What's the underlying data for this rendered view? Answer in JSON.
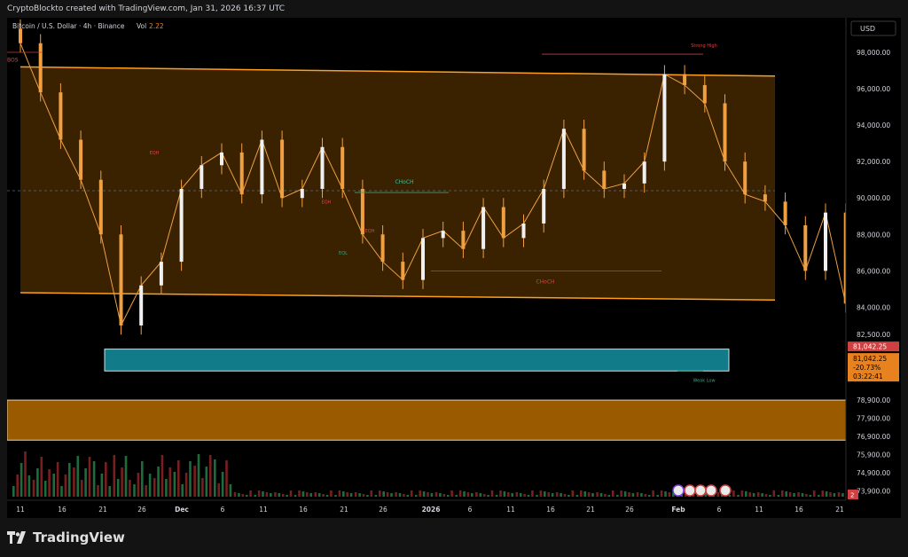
{
  "header": {
    "created_by": "CryptoBlockto created with TradingView.com, Jan 31, 2026 16:37 UTC"
  },
  "legend": {
    "symbol": "Bitcoin / U.S. Dollar · 4h · Binance",
    "vol_label": "Vol",
    "vol_value": "2.22"
  },
  "price_scale": {
    "currency": "USD",
    "ticks": [
      "98,000.00",
      "96,000.00",
      "94,000.00",
      "92,000.00",
      "90,000.00",
      "88,000.00",
      "86,000.00",
      "84,000.00",
      "82,500.00",
      "78,900.00",
      "77,900.00",
      "76,900.00",
      "75,900.00",
      "74,900.00",
      "73,900.00"
    ],
    "last_price_top": "81,042.25",
    "last_price": "81,042.25",
    "change_pct": "-20.73%",
    "countdown": "03:22:41",
    "corner_badge": "2"
  },
  "time_axis": {
    "labels": [
      "11",
      "16",
      "21",
      "26",
      "Dec",
      "6",
      "11",
      "16",
      "21",
      "26",
      "2026",
      "6",
      "11",
      "16",
      "21",
      "26",
      "Feb",
      "6",
      "11",
      "16",
      "21"
    ]
  },
  "annotations": {
    "bos": "BOS",
    "strong_high": "Strong High",
    "weak_low": "Weak Low",
    "choch_upper": "CHoCH",
    "choch_lower": "CHoCH",
    "eqh_1": "EQH",
    "eqh_2": "EQH",
    "eqh_3": "EQH",
    "eql": "EQL"
  },
  "footer": {
    "brand": "TradingView"
  },
  "colors": {
    "candle": "#f0f0f0",
    "wick": "#f0a040",
    "channel_fill": "#3a2200",
    "channel_border": "#ff9f1c",
    "demand_zone": "#127b8a",
    "lower_zone": "#9a5a00",
    "volume_green": "#1e6b3e",
    "volume_red": "#7a1e1e",
    "last_price_badge": "#e8821e"
  },
  "chart_data": {
    "type": "candlestick",
    "timeframe": "4h",
    "exchange": "Binance",
    "symbol": "BTCUSD",
    "x": [
      "11",
      "13",
      "15",
      "17",
      "19",
      "21",
      "23",
      "25",
      "27",
      "29",
      "Dec",
      "2",
      "4",
      "6",
      "8",
      "10",
      "12",
      "14",
      "16",
      "18",
      "20",
      "22",
      "24",
      "26",
      "28",
      "30",
      "2026",
      "2",
      "4",
      "6",
      "8",
      "10",
      "12",
      "14",
      "16",
      "18",
      "20",
      "22",
      "24",
      "26",
      "28",
      "30",
      "Feb"
    ],
    "y": [
      98500,
      95800,
      93200,
      91000,
      88000,
      83000,
      85200,
      86500,
      90500,
      91800,
      92500,
      90200,
      93200,
      90000,
      90500,
      92800,
      90500,
      88000,
      86500,
      85500,
      87800,
      88200,
      87200,
      89500,
      87800,
      88600,
      90500,
      93800,
      91500,
      90500,
      90800,
      92000,
      96800,
      96200,
      95200,
      92000,
      90200,
      89800,
      88500,
      86000,
      89200,
      84200,
      81042
    ],
    "channel_upper": {
      "start": 97200,
      "end": 96700
    },
    "channel_lower": {
      "start": 84800,
      "end": 84400
    },
    "channel_mid": 90400,
    "demand_zone": [
      80500,
      81700
    ],
    "lower_zone": [
      76700,
      78900
    ],
    "strong_high": 97900,
    "choch_upper_level": 90300,
    "choch_lower_level": 86000,
    "weak_low": 80500,
    "ylim": [
      73400,
      99900
    ]
  }
}
